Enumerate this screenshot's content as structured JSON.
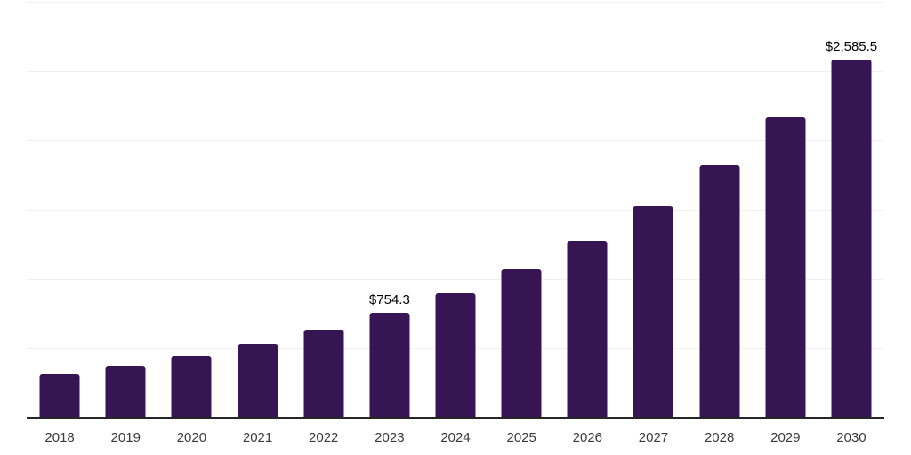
{
  "chart": {
    "background_color": "#ffffff",
    "bar_color": "#371452",
    "grid_color": "#f0f0f0",
    "axis_color": "#262626",
    "tick_label_color": "#3a3a3a",
    "value_label_color": "#000000"
  },
  "chart_data": {
    "type": "bar",
    "title": "",
    "xlabel": "",
    "ylabel": "",
    "categories": [
      "2018",
      "2019",
      "2020",
      "2021",
      "2022",
      "2023",
      "2024",
      "2025",
      "2026",
      "2027",
      "2028",
      "2029",
      "2030"
    ],
    "values": [
      312.9,
      373.1,
      444.9,
      530.5,
      632.6,
      754.3,
      899.4,
      1072.5,
      1278.9,
      1525.0,
      1818.5,
      2168.4,
      2585.5
    ],
    "data_labels": [
      "",
      "",
      "",
      "",
      "",
      "$754.3",
      "",
      "",
      "",
      "",
      "",
      "",
      "$2,585.5"
    ],
    "ylim": [
      0,
      3000
    ],
    "grid_step": 500,
    "grid": "horizontal",
    "legend_position": "none"
  }
}
